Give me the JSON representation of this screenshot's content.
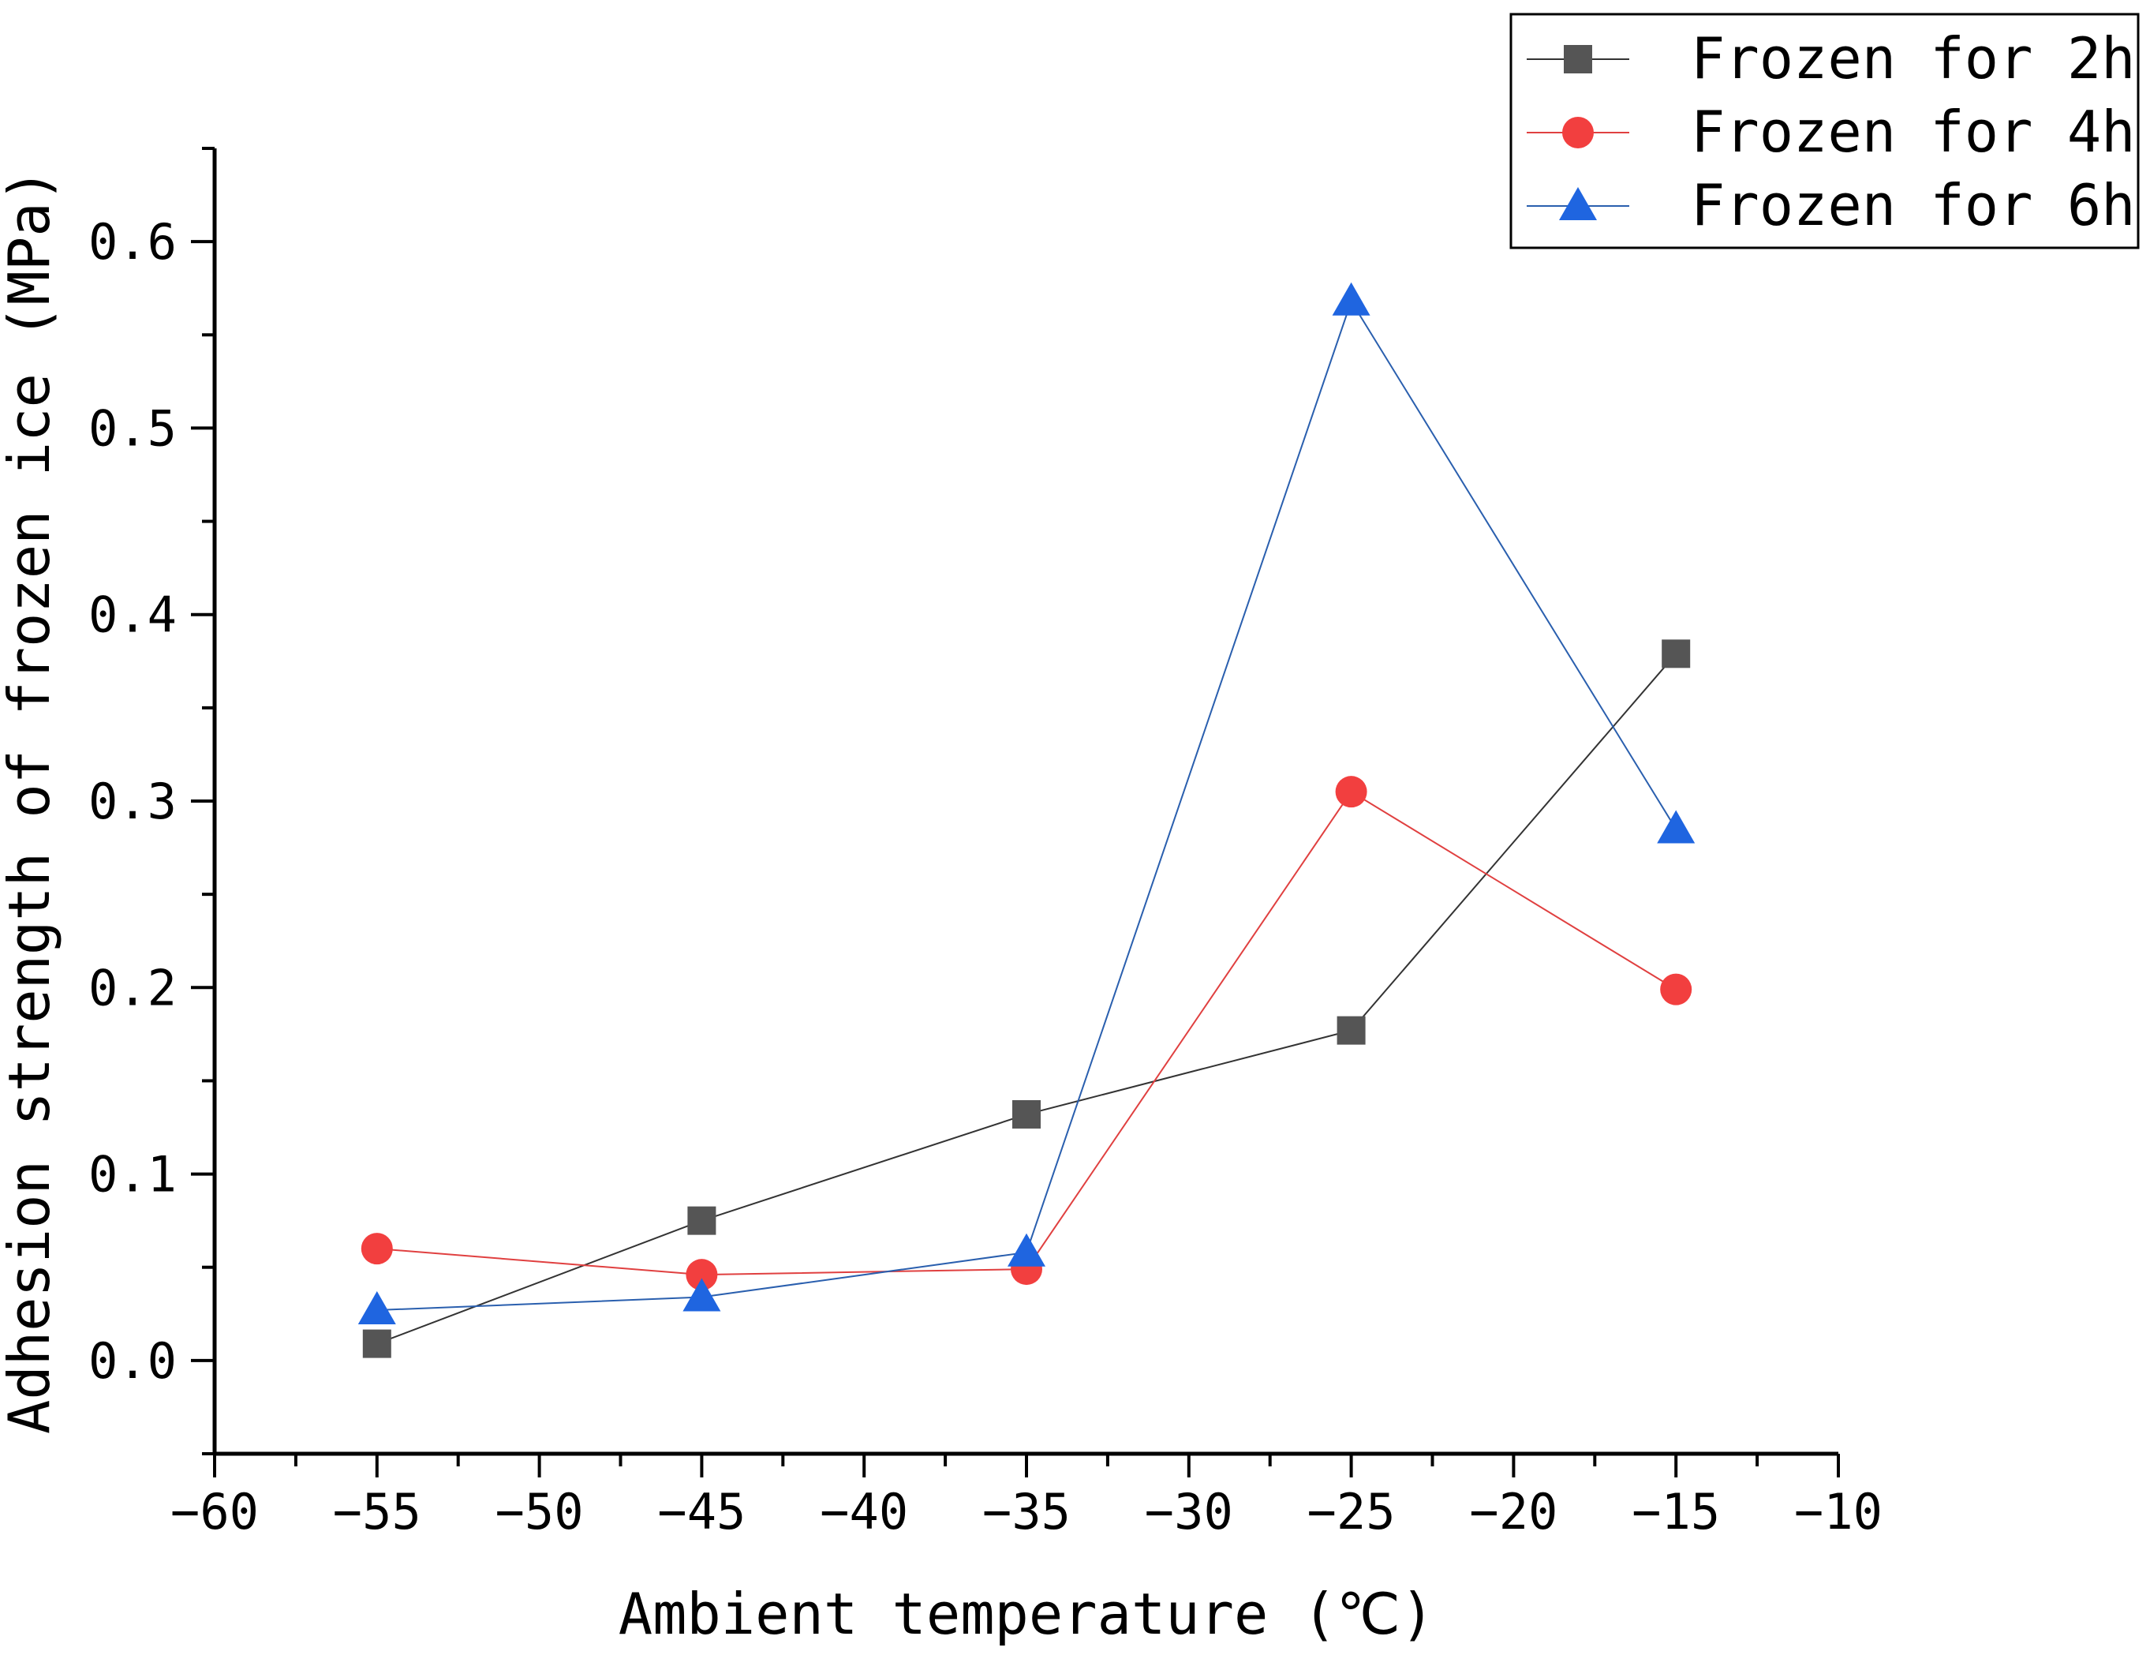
{
  "chart_data": {
    "type": "line",
    "title": "",
    "xlabel": "Ambient temperature (℃)",
    "ylabel": "Adhesion strength of frozen ice (MPa)",
    "xlim": [
      -60,
      -10
    ],
    "ylim": [
      -0.05,
      0.65
    ],
    "x_ticks": [
      -60,
      -55,
      -50,
      -45,
      -40,
      -35,
      -30,
      -25,
      -20,
      -15,
      -10
    ],
    "x_tick_labels": [
      "−60",
      "−55",
      "−50",
      "−45",
      "−40",
      "−35",
      "−30",
      "−25",
      "−20",
      "−15",
      "−10"
    ],
    "y_ticks": [
      0.0,
      0.1,
      0.2,
      0.3,
      0.4,
      0.5,
      0.6
    ],
    "y_tick_labels": [
      "0.0",
      "0.1",
      "0.2",
      "0.3",
      "0.4",
      "0.5",
      "0.6"
    ],
    "x": [
      -55,
      -45,
      -35,
      -25,
      -15
    ],
    "series": [
      {
        "name": "Frozen for 2h",
        "marker": "square",
        "color": "#555555",
        "line_color": "#333333",
        "values": [
          0.009,
          0.075,
          0.132,
          0.177,
          0.379
        ]
      },
      {
        "name": "Frozen for 4h",
        "marker": "circle",
        "color": "#f23f3f",
        "line_color": "#e04040",
        "values": [
          0.06,
          0.046,
          0.049,
          0.305,
          0.199
        ]
      },
      {
        "name": "Frozen for 6h",
        "marker": "triangle",
        "color": "#1f65e0",
        "line_color": "#2a5fae",
        "values": [
          0.027,
          0.034,
          0.058,
          0.568,
          0.285
        ]
      }
    ],
    "legend_position": "top-right",
    "grid": false
  }
}
